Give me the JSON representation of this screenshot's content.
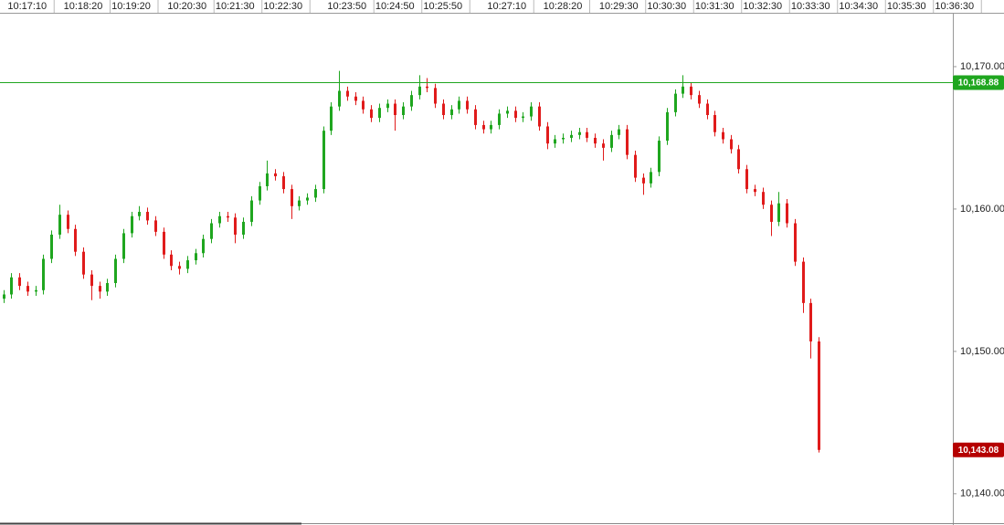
{
  "chart_data": {
    "type": "candlestick",
    "x": [
      "10:16:40",
      "10:16:50",
      "10:17:00",
      "10:17:10",
      "10:17:20",
      "10:17:30",
      "10:17:40",
      "10:17:50",
      "10:18:00",
      "10:18:10",
      "10:18:20",
      "10:18:30",
      "10:18:40",
      "10:18:50",
      "10:19:00",
      "10:19:10",
      "10:19:20",
      "10:19:30",
      "10:19:40",
      "10:19:50",
      "10:20:00",
      "10:20:10",
      "10:20:20",
      "10:20:30",
      "10:20:40",
      "10:20:50",
      "10:21:00",
      "10:21:10",
      "10:21:20",
      "10:21:30",
      "10:21:40",
      "10:21:50",
      "10:22:00",
      "10:22:10",
      "10:22:20",
      "10:22:30",
      "10:22:40",
      "10:22:50",
      "10:23:00",
      "10:23:10",
      "10:23:20",
      "10:23:30",
      "10:23:40",
      "10:23:50",
      "10:24:00",
      "10:24:10",
      "10:24:20",
      "10:24:30",
      "10:24:40",
      "10:24:50",
      "10:25:00",
      "10:25:10",
      "10:25:20",
      "10:25:30",
      "10:25:40",
      "10:25:50",
      "10:26:00",
      "10:26:10",
      "10:26:20",
      "10:26:30",
      "10:26:40",
      "10:26:50",
      "10:27:00",
      "10:27:10",
      "10:27:20",
      "10:27:30",
      "10:27:40",
      "10:27:50",
      "10:28:00",
      "10:28:10",
      "10:28:20",
      "10:28:30",
      "10:28:40",
      "10:28:50",
      "10:29:00",
      "10:29:10",
      "10:29:20",
      "10:29:30",
      "10:29:40",
      "10:29:50",
      "10:30:00",
      "10:30:10",
      "10:30:20",
      "10:30:30",
      "10:30:40",
      "10:30:50",
      "10:31:00",
      "10:31:10",
      "10:31:20",
      "10:31:30",
      "10:31:40",
      "10:31:50",
      "10:32:00",
      "10:32:10",
      "10:32:20",
      "10:32:30",
      "10:32:40",
      "10:32:50",
      "10:33:00",
      "10:33:10",
      "10:33:20",
      "10:33:30",
      "10:33:40"
    ],
    "open": [
      10153.7,
      10154.0,
      10155.2,
      10154.6,
      10154.2,
      10154.3,
      10156.5,
      10158.2,
      10159.6,
      10158.6,
      10157.0,
      10155.4,
      10154.6,
      10154.2,
      10154.8,
      10156.5,
      10158.3,
      10159.5,
      10159.8,
      10159.2,
      10158.4,
      10156.8,
      10156.0,
      10155.8,
      10156.4,
      10156.9,
      10157.9,
      10159.0,
      10159.5,
      10159.4,
      10158.2,
      10159.1,
      10160.6,
      10161.6,
      10162.5,
      10162.3,
      10161.4,
      10160.2,
      10160.6,
      10160.8,
      10161.4,
      10165.5,
      10167.2,
      10168.3,
      10167.9,
      10167.6,
      10167.0,
      10166.4,
      10167.1,
      10167.4,
      10166.6,
      10167.2,
      10168.0,
      10168.6,
      10168.5,
      10167.4,
      10166.6,
      10167.0,
      10167.6,
      10167.0,
      10165.9,
      10165.6,
      10165.9,
      10166.7,
      10166.9,
      10166.4,
      10166.5,
      10167.2,
      10165.8,
      10164.6,
      10164.9,
      10165.0,
      10165.2,
      10165.4,
      10165.0,
      10164.6,
      10164.3,
      10165.2,
      10165.6,
      10163.8,
      10162.2,
      10161.8,
      10162.6,
      10164.8,
      10166.8,
      10168.1,
      10168.6,
      10168.0,
      10167.4,
      10166.6,
      10165.4,
      10164.9,
      10164.2,
      10162.8,
      10161.4,
      10161.2,
      10160.3,
      10159.1,
      10160.4,
      10159.0,
      10156.3,
      10153.4,
      10150.7
    ],
    "high": [
      10154.3,
      10155.5,
      10155.5,
      10154.9,
      10154.6,
      10156.8,
      10158.5,
      10160.3,
      10159.9,
      10158.9,
      10157.3,
      10155.7,
      10154.9,
      10155.1,
      10156.8,
      10158.6,
      10159.8,
      10160.2,
      10160.1,
      10159.5,
      10158.7,
      10157.1,
      10156.3,
      10156.7,
      10157.2,
      10158.2,
      10159.3,
      10159.8,
      10159.8,
      10159.7,
      10159.4,
      10160.9,
      10161.9,
      10163.4,
      10162.8,
      10162.6,
      10161.7,
      10160.9,
      10161.1,
      10161.7,
      10165.8,
      10167.5,
      10169.7,
      10168.6,
      10168.2,
      10167.9,
      10167.3,
      10167.4,
      10167.7,
      10167.7,
      10167.5,
      10168.3,
      10169.4,
      10169.2,
      10168.8,
      10167.7,
      10167.3,
      10167.9,
      10167.9,
      10167.3,
      10166.2,
      10166.2,
      10167.0,
      10167.2,
      10167.2,
      10166.8,
      10167.5,
      10167.5,
      10166.1,
      10165.2,
      10165.3,
      10165.5,
      10165.7,
      10165.7,
      10165.3,
      10164.9,
      10165.5,
      10165.9,
      10165.9,
      10164.1,
      10162.5,
      10162.9,
      10165.1,
      10167.1,
      10168.4,
      10169.4,
      10168.9,
      10168.3,
      10167.7,
      10166.9,
      10165.7,
      10165.2,
      10164.5,
      10163.1,
      10161.7,
      10161.5,
      10160.6,
      10161.2,
      10160.7,
      10159.3,
      10156.6,
      10153.7,
      10151.0
    ],
    "low": [
      10153.4,
      10153.7,
      10154.3,
      10153.9,
      10153.9,
      10154.0,
      10156.2,
      10157.9,
      10158.3,
      10156.7,
      10155.1,
      10153.6,
      10153.7,
      10153.9,
      10154.5,
      10156.2,
      10158.0,
      10159.2,
      10158.9,
      10158.1,
      10156.5,
      10155.7,
      10155.4,
      10155.5,
      10156.1,
      10156.6,
      10157.6,
      10158.7,
      10159.1,
      10157.6,
      10157.9,
      10158.8,
      10160.3,
      10161.3,
      10162.0,
      10161.1,
      10159.3,
      10159.9,
      10160.3,
      10160.5,
      10161.1,
      10165.2,
      10166.9,
      10167.6,
      10167.3,
      10166.7,
      10166.1,
      10166.1,
      10166.8,
      10165.5,
      10166.3,
      10166.9,
      10167.7,
      10168.2,
      10167.1,
      10166.3,
      10166.3,
      10166.7,
      10166.7,
      10165.6,
      10165.3,
      10165.3,
      10165.6,
      10166.4,
      10166.1,
      10166.1,
      10166.2,
      10165.5,
      10164.2,
      10164.3,
      10164.6,
      10164.7,
      10164.9,
      10164.7,
      10164.3,
      10163.4,
      10164.0,
      10164.9,
      10163.5,
      10161.9,
      10161.0,
      10161.5,
      10162.3,
      10164.5,
      10166.5,
      10167.8,
      10167.7,
      10167.1,
      10166.3,
      10165.1,
      10164.6,
      10163.9,
      10162.5,
      10161.1,
      10160.9,
      10160.0,
      10158.1,
      10158.8,
      10158.7,
      10156.0,
      10152.7,
      10149.5,
      10142.9
    ],
    "close": [
      10154.0,
      10155.2,
      10154.6,
      10154.2,
      10154.3,
      10156.5,
      10158.2,
      10159.6,
      10158.6,
      10157.0,
      10155.4,
      10154.6,
      10154.2,
      10154.8,
      10156.5,
      10158.3,
      10159.5,
      10159.8,
      10159.2,
      10158.4,
      10156.8,
      10156.0,
      10155.8,
      10156.4,
      10156.9,
      10157.9,
      10159.0,
      10159.5,
      10159.4,
      10158.2,
      10159.1,
      10160.6,
      10161.6,
      10162.5,
      10162.3,
      10161.4,
      10160.2,
      10160.6,
      10160.8,
      10161.4,
      10165.5,
      10167.2,
      10168.3,
      10167.9,
      10167.6,
      10167.0,
      10166.4,
      10167.1,
      10167.4,
      10166.6,
      10167.2,
      10168.0,
      10168.6,
      10168.5,
      10167.4,
      10166.6,
      10167.0,
      10167.6,
      10167.0,
      10165.9,
      10165.6,
      10165.9,
      10166.7,
      10166.9,
      10166.4,
      10166.5,
      10167.2,
      10165.8,
      10164.6,
      10164.9,
      10165.0,
      10165.2,
      10165.4,
      10165.0,
      10164.6,
      10164.3,
      10165.2,
      10165.6,
      10163.8,
      10162.2,
      10161.8,
      10162.6,
      10164.8,
      10166.8,
      10168.1,
      10168.6,
      10168.0,
      10167.4,
      10166.6,
      10165.4,
      10164.9,
      10164.2,
      10162.8,
      10161.4,
      10161.2,
      10160.3,
      10159.1,
      10160.4,
      10159.0,
      10156.3,
      10153.4,
      10150.7,
      10143.08
    ],
    "up_color": "#1fa61f",
    "down_color": "#e01b1b",
    "xlim": [
      "10:16:36",
      "10:37:32"
    ],
    "xticks": [
      "10:17:10",
      "10:18:20",
      "10:19:20",
      "10:20:30",
      "10:21:30",
      "10:22:30",
      "10:23:50",
      "10:24:50",
      "10:25:50",
      "10:27:10",
      "10:28:20",
      "10:29:30",
      "10:30:30",
      "10:31:30",
      "10:32:30",
      "10:33:30",
      "10:34:30",
      "10:35:30",
      "10:36:30"
    ],
    "ylim": [
      10138.0,
      10174.68
    ],
    "yticks": [
      {
        "value": 10140,
        "label": "10,140.00"
      },
      {
        "value": 10150,
        "label": "10,150.00"
      },
      {
        "value": 10160,
        "label": "10,160.00"
      },
      {
        "value": 10170,
        "label": "10,170.00"
      }
    ],
    "hline": {
      "value": 10168.88,
      "label": "10,168.88",
      "color": "#1fa61f"
    },
    "last_price": {
      "value": 10143.08,
      "label": "10,143.08",
      "color": "#b50000"
    }
  }
}
